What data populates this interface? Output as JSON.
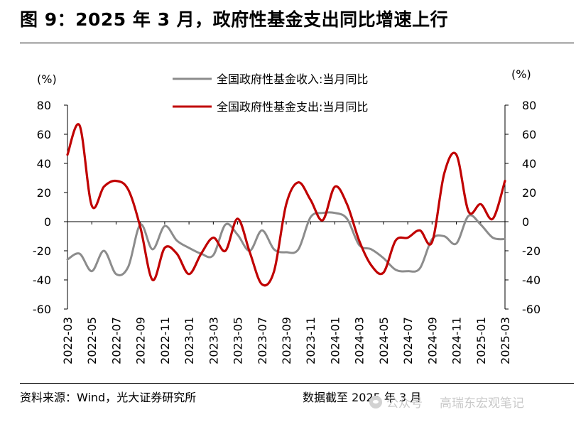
{
  "header": {
    "title": "图 9：2025 年 3 月，政府性基金支出同比增速上行"
  },
  "footer": {
    "source": "资料来源：Wind，光大证券研究所",
    "date_note": "数据截至 2025 年 3 月",
    "watermark_left": "公众号",
    "watermark_right": "高瑞东宏观笔记"
  },
  "colors": {
    "income": "#8c8c8c",
    "expenditure": "#c00000",
    "axis": "#000000"
  },
  "chart_data": {
    "type": "line",
    "title": "",
    "ylabel_left": "(%)",
    "ylabel_right": "(%)",
    "ylim": [
      -60,
      80
    ],
    "yticks": [
      -60,
      -40,
      -20,
      0,
      20,
      40,
      60,
      80
    ],
    "x": [
      "2022-03",
      "2022-04",
      "2022-05",
      "2022-06",
      "2022-07",
      "2022-08",
      "2022-09",
      "2022-10",
      "2022-11",
      "2022-12",
      "2023-01",
      "2023-02",
      "2023-03",
      "2023-04",
      "2023-05",
      "2023-06",
      "2023-07",
      "2023-08",
      "2023-09",
      "2023-10",
      "2023-11",
      "2023-12",
      "2024-01",
      "2024-02",
      "2024-03",
      "2024-04",
      "2024-05",
      "2024-06",
      "2024-07",
      "2024-08",
      "2024-09",
      "2024-10",
      "2024-11",
      "2024-12",
      "2025-01",
      "2025-02",
      "2025-03"
    ],
    "xtick_labels": [
      "2022-03",
      "2022-05",
      "2022-07",
      "2022-09",
      "2022-11",
      "2023-01",
      "2023-03",
      "2023-05",
      "2023-07",
      "2023-09",
      "2023-11",
      "2024-01",
      "2024-03",
      "2024-05",
      "2024-07",
      "2024-09",
      "2024-11",
      "2025-01",
      "2025-03"
    ],
    "legend": "top-center",
    "grid": false,
    "series": [
      {
        "name": "全国政府性基金收入:当月同比",
        "color": "#8c8c8c",
        "values": [
          -26,
          -22,
          -34,
          -20,
          -36,
          -31,
          -2,
          -19,
          -3,
          -13,
          -18,
          -22,
          -23,
          -2,
          -9,
          -20,
          -6,
          -19,
          -21,
          -19,
          3,
          6,
          6,
          2,
          -16,
          -19,
          -25,
          -33,
          -34,
          -32,
          -12,
          -10,
          -15,
          4,
          -2,
          -11,
          -12
        ]
      },
      {
        "name": "全国政府性基金支出:当月同比",
        "color": "#c00000",
        "values": [
          46,
          66,
          11,
          24,
          28,
          22,
          -4,
          -40,
          -18,
          -22,
          -36,
          -22,
          -11,
          -20,
          2,
          -21,
          -43,
          -34,
          12,
          27,
          15,
          1,
          24,
          12,
          -13,
          -30,
          -35,
          -13,
          -11,
          -6,
          -14,
          33,
          46,
          7,
          12,
          2,
          28
        ]
      }
    ]
  }
}
